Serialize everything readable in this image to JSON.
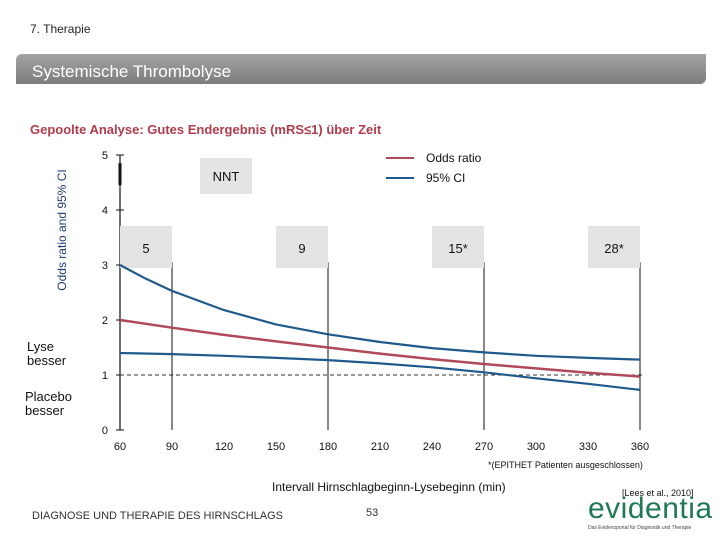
{
  "header": {
    "breadcrumb": "7. Therapie",
    "title": "Systemische Thrombolyse"
  },
  "chart_heading": "Gepoolte Analyse: Gutes Endergebnis (mRS≤1) über Zeit",
  "side_labels": {
    "lyse": "Lyse besser",
    "placebo": "Placebo besser"
  },
  "footnote": "*(EPITHET Patienten ausgeschlossen)",
  "citation": "[Lees et al., 2010]",
  "footer": {
    "left_text": "DIAGNOSE UND THERAPIE DES HIRNSCHLAGS",
    "page_number": "53",
    "logo_text": "evidentia",
    "logo_tagline": "Das Evidenzportal für Diagnostik und Therapie"
  },
  "colors": {
    "odds": "#b04a5a",
    "ci": "#1f5a8c",
    "heading": "#b03c4c",
    "banner": "#8e8e8e"
  },
  "chart_data": {
    "type": "line",
    "title": "Gepoolte Analyse: Gutes Endergebnis (mRS≤1) über Zeit",
    "xlabel": "Intervall Hirnschlagbeginn-Lysebeginn (min)",
    "ylabel": "Odds ratio and 95% CI",
    "xlim": [
      60,
      360
    ],
    "ylim": [
      0,
      5
    ],
    "x_ticks": [
      60,
      90,
      120,
      150,
      180,
      210,
      240,
      270,
      300,
      330,
      360
    ],
    "y_ticks": [
      0,
      1,
      2,
      3,
      4,
      5
    ],
    "reference_line": 1,
    "legend": {
      "position": "top-right",
      "entries": [
        "Odds ratio",
        "95% CI"
      ]
    },
    "series": [
      {
        "name": "Odds ratio",
        "x": [
          60,
          90,
          120,
          150,
          180,
          210,
          240,
          270,
          300,
          330,
          360
        ],
        "y": [
          2.0,
          1.86,
          1.73,
          1.61,
          1.5,
          1.39,
          1.29,
          1.2,
          1.12,
          1.04,
          0.97
        ]
      },
      {
        "name": "95% CI upper",
        "x": [
          60,
          75,
          90,
          120,
          150,
          180,
          210,
          240,
          270,
          300,
          330,
          360
        ],
        "y": [
          3.0,
          2.75,
          2.53,
          2.18,
          1.92,
          1.74,
          1.6,
          1.49,
          1.41,
          1.35,
          1.31,
          1.28
        ]
      },
      {
        "name": "95% CI lower",
        "x": [
          60,
          90,
          120,
          150,
          180,
          210,
          240,
          270,
          300,
          330,
          360
        ],
        "y": [
          1.4,
          1.38,
          1.35,
          1.31,
          1.27,
          1.21,
          1.14,
          1.05,
          0.94,
          0.84,
          0.73
        ]
      }
    ],
    "nnt_label": "NNT",
    "nnt_markers": [
      {
        "x": 90,
        "label": "5"
      },
      {
        "x": 180,
        "label": "9"
      },
      {
        "x": 270,
        "label": "15*"
      },
      {
        "x": 360,
        "label": "28*"
      }
    ]
  }
}
